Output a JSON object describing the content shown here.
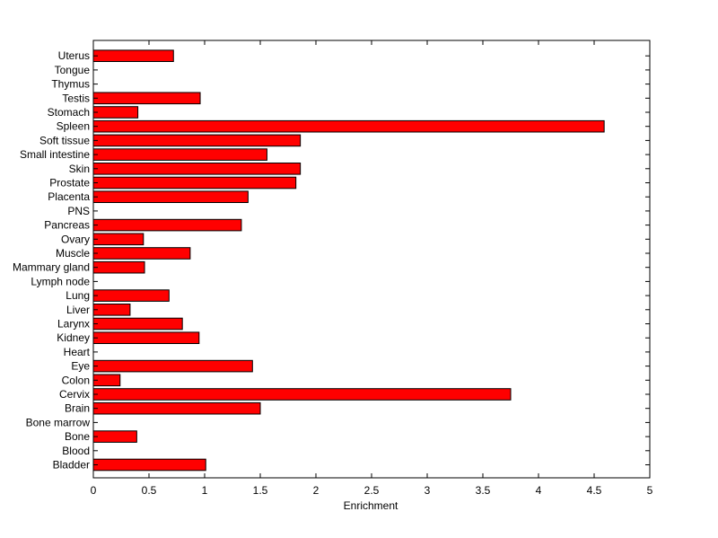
{
  "chart_data": {
    "type": "bar",
    "orientation": "horizontal",
    "title": "",
    "xlabel": "Enrichment",
    "ylabel": "",
    "xlim": [
      0,
      5
    ],
    "xticks": [
      "0",
      "0.5",
      "1",
      "1.5",
      "2",
      "2.5",
      "3",
      "3.5",
      "4",
      "4.5",
      "5"
    ],
    "grid": false,
    "bar_color": "#ff0000",
    "categories": [
      "Bladder",
      "Blood",
      "Bone",
      "Bone marrow",
      "Brain",
      "Cervix",
      "Colon",
      "Eye",
      "Heart",
      "Kidney",
      "Larynx",
      "Liver",
      "Lung",
      "Lymph node",
      "Mammary gland",
      "Muscle",
      "Ovary",
      "Pancreas",
      "PNS",
      "Placenta",
      "Prostate",
      "Skin",
      "Small intestine",
      "Soft tissue",
      "Spleen",
      "Stomach",
      "Testis",
      "Thymus",
      "Tongue",
      "Uterus"
    ],
    "values": [
      1.01,
      0,
      0.39,
      0,
      1.5,
      3.75,
      0.24,
      1.43,
      0,
      0.95,
      0.8,
      0.33,
      0.68,
      0,
      0.46,
      0.87,
      0.45,
      1.33,
      0,
      1.39,
      1.82,
      1.86,
      1.56,
      1.86,
      4.59,
      0.4,
      0.96,
      0,
      0,
      0.72
    ]
  }
}
